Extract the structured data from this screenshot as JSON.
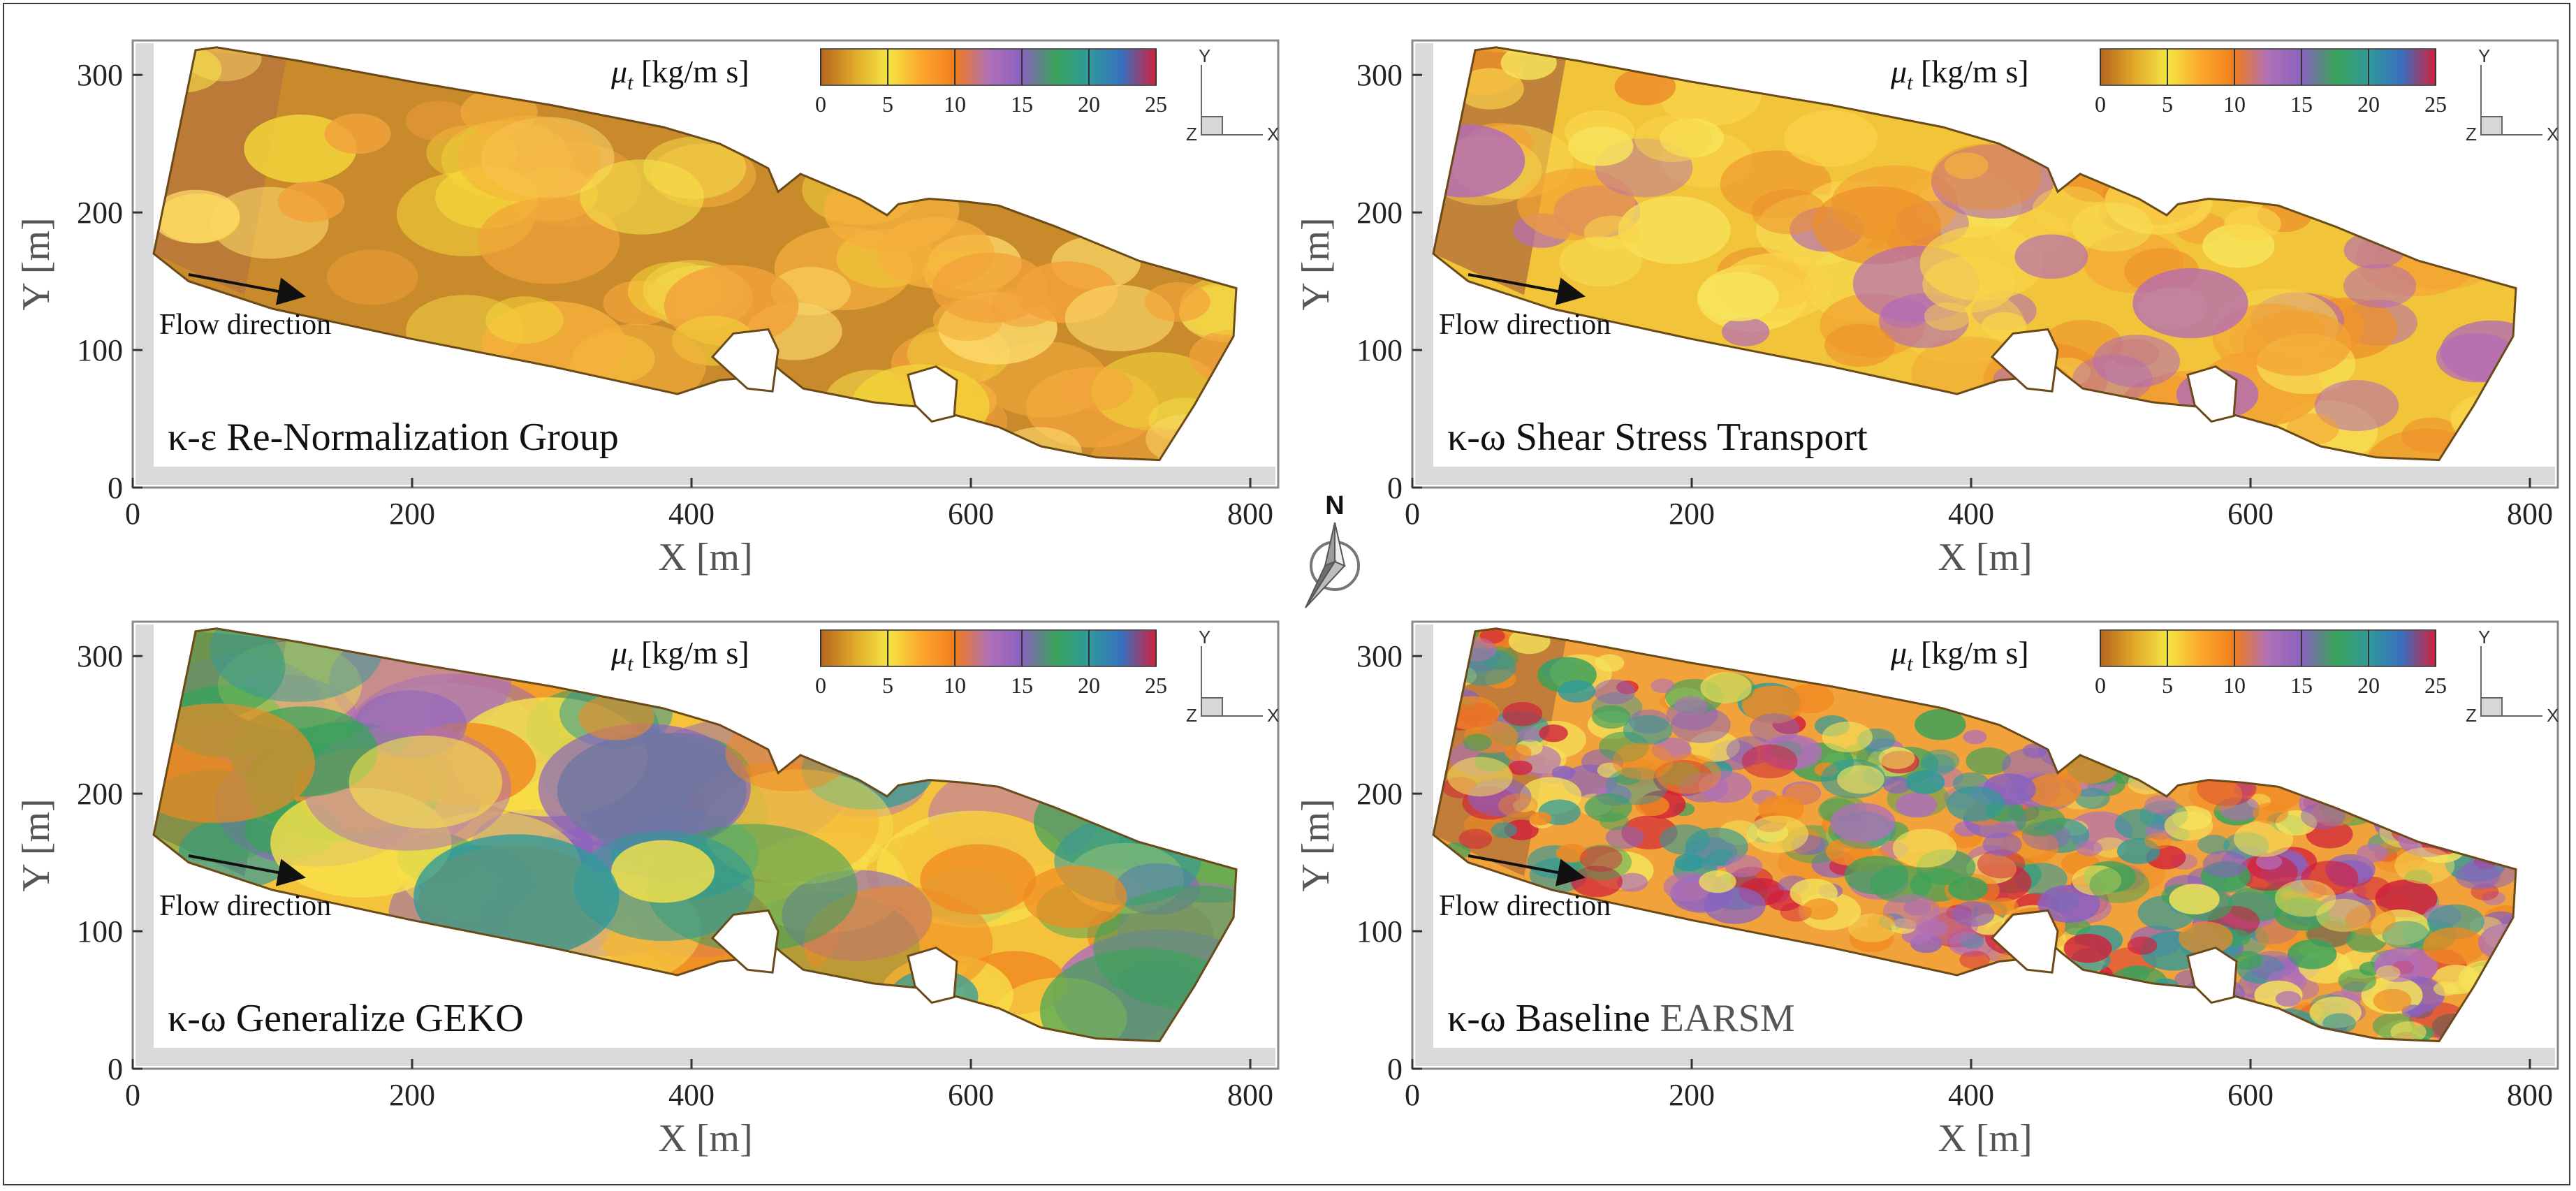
{
  "figure": {
    "north_label": "N",
    "colorbar": {
      "symbol": "μ",
      "subscript": "t",
      "unit": " [kg/m s]",
      "ticks": [
        "0",
        "5",
        "10",
        "15",
        "20",
        "25"
      ],
      "stops": [
        "#b5651d",
        "#e0a82a",
        "#f5e642",
        "#fca72c",
        "#f07d1c",
        "#b070b8",
        "#8a62c0",
        "#3aa25a",
        "#2e9a9a",
        "#3a6fbf",
        "#d1203a"
      ]
    },
    "triad": {
      "y": "Y",
      "z": "Z",
      "x": "X"
    },
    "flow_label": "Flow direction"
  },
  "chart_data": [
    {
      "type": "heatmap",
      "title": "κ-ε Re-Normalization Group",
      "xlabel": "X [m]",
      "ylabel": "Y [m]",
      "xlim": [
        0,
        820
      ],
      "ylim": [
        0,
        325
      ],
      "xticks": [
        "0",
        "200",
        "400",
        "600",
        "800"
      ],
      "yticks": [
        "0",
        "100",
        "200",
        "300"
      ],
      "value_range": [
        0,
        25
      ],
      "typical_mu_t": "0–8 kg/m s, mostly yellow/orange"
    },
    {
      "type": "heatmap",
      "title": "κ-ω Shear Stress Transport",
      "xlabel": "X [m]",
      "ylabel": "Y [m]",
      "xlim": [
        0,
        820
      ],
      "ylim": [
        0,
        325
      ],
      "xticks": [
        "0",
        "200",
        "400",
        "600",
        "800"
      ],
      "yticks": [
        "0",
        "100",
        "200",
        "300"
      ],
      "value_range": [
        0,
        25
      ],
      "typical_mu_t": "2–10 kg/m s, yellow/orange with few purple spots"
    },
    {
      "type": "heatmap",
      "title": "κ-ω Generalize GEKO",
      "xlabel": "X [m]",
      "ylabel": "Y [m]",
      "xlim": [
        0,
        820
      ],
      "ylim": [
        0,
        325
      ],
      "xticks": [
        "0",
        "200",
        "400",
        "600",
        "800"
      ],
      "yticks": [
        "0",
        "100",
        "200",
        "300"
      ],
      "value_range": [
        0,
        25
      ],
      "typical_mu_t": "5–18 kg/m s, large green/purple eddies"
    },
    {
      "type": "heatmap",
      "title_main": "κ-ω Baseline ",
      "title_tail": "EARSM",
      "xlabel": "X [m]",
      "ylabel": "Y [m]",
      "xlim": [
        0,
        820
      ],
      "ylim": [
        0,
        325
      ],
      "xticks": [
        "0",
        "200",
        "400",
        "600",
        "800"
      ],
      "yticks": [
        "0",
        "100",
        "200",
        "300"
      ],
      "value_range": [
        0,
        25
      ],
      "typical_mu_t": "5–25 kg/m s, mottled green/purple with red spots"
    }
  ]
}
